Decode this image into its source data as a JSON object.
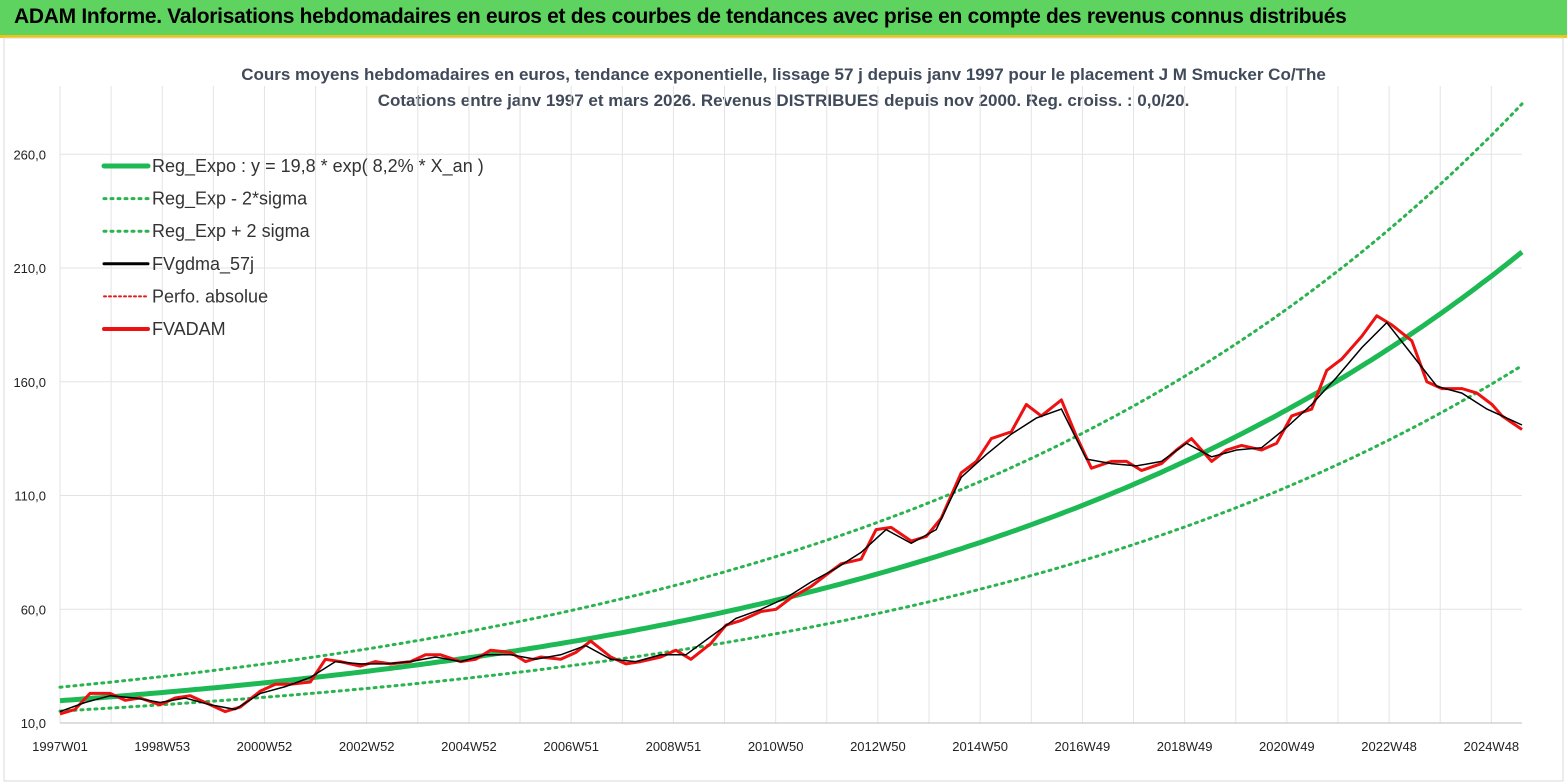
{
  "banner": {
    "title": "ADAM Informe. Valorisations hebdomadaires en euros et des courbes de tendances avec prise en compte des revenus connus distribués"
  },
  "colors": {
    "banner_bg": "#5fd35f",
    "banner_border": "#f1c40f",
    "reg_expo": "#1db954",
    "sigma_bands": "#2ab34f",
    "fvgdma": "#000000",
    "perfo": "#e41a1a",
    "fvadam": "#ee1111"
  },
  "chart_data": {
    "type": "line",
    "title_line1": "Cours moyens hebdomadaires en euros, tendance exponentielle, lissage 57 j depuis janv 1997 pour le placement J M Smucker  Co/The",
    "title_line2": "Cotations entre janv 1997 et mars 2026. Revenus DISTRIBUES depuis nov 2000. Reg. croiss. : 0,0/20.",
    "x_tick_labels": [
      "1997W01",
      "1998W53",
      "2000W52",
      "2002W52",
      "2004W52",
      "2006W51",
      "2008W51",
      "2010W50",
      "2012W50",
      "2014W50",
      "2016W49",
      "2018W49",
      "2020W49",
      "2022W48",
      "2024W48"
    ],
    "x_range_years": [
      1997.0,
      2026.2
    ],
    "y_tick_labels": [
      "10,0",
      "60,0",
      "110,0",
      "160,0",
      "210,0",
      "260,0"
    ],
    "y_ticks": [
      10,
      60,
      110,
      160,
      210,
      260
    ],
    "ylim": [
      10,
      290
    ],
    "grid": true,
    "legend_position": "top-left",
    "legend": [
      "Reg_Expo : y = 19,8 * exp( 8,2% *  X_an )",
      "Reg_Exp - 2*sigma",
      "Reg_Exp + 2 sigma",
      "FVgdma_57j",
      "Perfo. absolue",
      "FVADAM"
    ],
    "reg_expo": {
      "a": 19.8,
      "rate": 0.082
    },
    "sigma_factors": {
      "minus": 0.77,
      "plus": 1.3
    },
    "series_fvadam": {
      "x": [
        1997.0,
        1997.3,
        1997.6,
        1998.0,
        1998.3,
        1998.6,
        1999.0,
        1999.3,
        1999.6,
        2000.0,
        2000.3,
        2000.6,
        2001.0,
        2001.3,
        2001.6,
        2002.0,
        2002.3,
        2002.6,
        2003.0,
        2003.3,
        2003.6,
        2004.0,
        2004.3,
        2004.6,
        2005.0,
        2005.3,
        2005.6,
        2006.0,
        2006.3,
        2006.6,
        2007.0,
        2007.3,
        2007.6,
        2008.0,
        2008.3,
        2008.6,
        2009.0,
        2009.3,
        2009.6,
        2010.0,
        2010.3,
        2010.6,
        2011.0,
        2011.3,
        2011.6,
        2012.0,
        2012.3,
        2012.6,
        2013.0,
        2013.3,
        2013.6,
        2014.0,
        2014.3,
        2014.6,
        2015.0,
        2015.3,
        2015.6,
        2016.0,
        2016.3,
        2016.6,
        2017.0,
        2017.3,
        2017.6,
        2018.0,
        2018.3,
        2018.6,
        2019.0,
        2019.3,
        2019.6,
        2020.0,
        2020.3,
        2020.6,
        2021.0,
        2021.3,
        2021.6,
        2022.0,
        2022.3,
        2022.6,
        2023.0,
        2023.3,
        2023.6,
        2024.0,
        2024.3,
        2024.6,
        2025.0,
        2025.3,
        2025.6,
        2025.8,
        2026.0,
        2026.2
      ],
      "y": [
        14,
        16,
        23,
        23,
        20,
        21,
        18,
        21,
        22,
        18,
        15,
        17,
        24,
        27,
        27,
        28,
        38,
        37,
        35,
        37,
        36,
        37,
        40,
        40,
        37,
        38,
        42,
        41,
        37,
        39,
        38,
        41,
        46,
        39,
        36,
        37,
        39,
        42,
        38,
        45,
        53,
        55,
        59,
        60,
        65,
        70,
        75,
        80,
        82,
        95,
        96,
        90,
        92,
        100,
        120,
        125,
        135,
        138,
        150,
        145,
        152,
        136,
        122,
        125,
        125,
        121,
        124,
        130,
        135,
        125,
        130,
        132,
        130,
        133,
        145,
        148,
        165,
        170,
        180,
        189,
        185,
        178,
        160,
        157,
        157,
        155,
        150,
        145,
        142,
        139
      ]
    },
    "series_fvgdma": {
      "x": [
        1997.0,
        1997.5,
        1998.0,
        1998.5,
        1999.0,
        1999.5,
        2000.0,
        2000.5,
        2001.0,
        2001.5,
        2002.0,
        2002.5,
        2003.0,
        2003.5,
        2004.0,
        2004.5,
        2005.0,
        2005.5,
        2006.0,
        2006.5,
        2007.0,
        2007.5,
        2008.0,
        2008.5,
        2009.0,
        2009.5,
        2010.0,
        2010.5,
        2011.0,
        2011.5,
        2012.0,
        2012.5,
        2013.0,
        2013.5,
        2014.0,
        2014.5,
        2015.0,
        2015.5,
        2016.0,
        2016.5,
        2017.0,
        2017.5,
        2018.0,
        2018.5,
        2019.0,
        2019.5,
        2020.0,
        2020.5,
        2021.0,
        2021.5,
        2022.0,
        2022.5,
        2023.0,
        2023.5,
        2024.0,
        2024.5,
        2025.0,
        2025.5,
        2026.0,
        2026.2
      ],
      "y": [
        15,
        19,
        22,
        21,
        19,
        21,
        18,
        16,
        23,
        26,
        30,
        37,
        36,
        36,
        37,
        39,
        37,
        40,
        40,
        38,
        40,
        44,
        38,
        37,
        40,
        40,
        48,
        56,
        60,
        65,
        72,
        78,
        85,
        95,
        89,
        95,
        118,
        128,
        137,
        144,
        148,
        126,
        124,
        123,
        125,
        133,
        127,
        130,
        131,
        140,
        150,
        162,
        175,
        186,
        172,
        158,
        155,
        148,
        143,
        141
      ]
    }
  }
}
